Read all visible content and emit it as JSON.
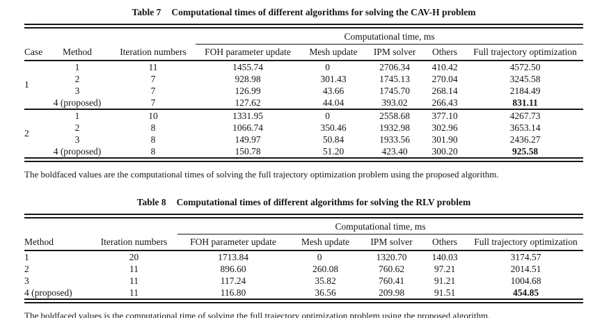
{
  "page": {
    "background": "#ffffff",
    "text_color": "#141414",
    "rule_color": "#151515"
  },
  "table7": {
    "title_label": "Table 7",
    "title": "Computational times of different algorithms for solving the CAV-H problem",
    "span_header": "Computational time, ms",
    "columns": [
      "Case",
      "Method",
      "Iteration numbers",
      "FOH parameter update",
      "Mesh update",
      "IPM solver",
      "Others",
      "Full trajectory optimization"
    ],
    "groups": [
      {
        "case": "1",
        "rows": [
          {
            "method": "1",
            "iterations": "11",
            "times": [
              "1455.74",
              "0",
              "2706.34",
              "410.42",
              "4572.50"
            ],
            "bold_last": false
          },
          {
            "method": "2",
            "iterations": "7",
            "times": [
              "928.98",
              "301.43",
              "1745.13",
              "270.04",
              "3245.58"
            ],
            "bold_last": false
          },
          {
            "method": "3",
            "iterations": "7",
            "times": [
              "126.99",
              "43.66",
              "1745.70",
              "268.14",
              "2184.49"
            ],
            "bold_last": false
          },
          {
            "method": "4 (proposed)",
            "iterations": "7",
            "times": [
              "127.62",
              "44.04",
              "393.02",
              "266.43",
              "831.11"
            ],
            "bold_last": true
          }
        ]
      },
      {
        "case": "2",
        "rows": [
          {
            "method": "1",
            "iterations": "10",
            "times": [
              "1331.95",
              "0",
              "2558.68",
              "377.10",
              "4267.73"
            ],
            "bold_last": false
          },
          {
            "method": "2",
            "iterations": "8",
            "times": [
              "1066.74",
              "350.46",
              "1932.98",
              "302.96",
              "3653.14"
            ],
            "bold_last": false
          },
          {
            "method": "3",
            "iterations": "8",
            "times": [
              "149.97",
              "50.84",
              "1933.56",
              "301.90",
              "2436.27"
            ],
            "bold_last": false
          },
          {
            "method": "4 (proposed)",
            "iterations": "8",
            "times": [
              "150.78",
              "51.20",
              "423.40",
              "300.20",
              "925.58"
            ],
            "bold_last": true
          }
        ]
      }
    ],
    "footnote": "The boldfaced values are the computational times of solving the full trajectory optimization problem using the proposed algorithm."
  },
  "table8": {
    "title_label": "Table 8",
    "title": "Computational times of different algorithms for solving the RLV problem",
    "span_header": "Computational time, ms",
    "columns": [
      "Method",
      "Iteration numbers",
      "FOH parameter update",
      "Mesh update",
      "IPM solver",
      "Others",
      "Full trajectory optimization"
    ],
    "groups": [
      {
        "rows": [
          {
            "method": "1",
            "iterations": "20",
            "times": [
              "1713.84",
              "0",
              "1320.70",
              "140.03",
              "3174.57"
            ],
            "bold_last": false
          },
          {
            "method": "2",
            "iterations": "11",
            "times": [
              "896.60",
              "260.08",
              "760.62",
              "97.21",
              "2014.51"
            ],
            "bold_last": false
          },
          {
            "method": "3",
            "iterations": "11",
            "times": [
              "117.24",
              "35.82",
              "760.41",
              "91.21",
              "1004.68"
            ],
            "bold_last": false
          },
          {
            "method": "4 (proposed)",
            "iterations": "11",
            "times": [
              "116.80",
              "36.56",
              "209.98",
              "91.51",
              "454.85"
            ],
            "bold_last": true
          }
        ]
      }
    ],
    "footnote": "The boldfaced values is the computational time of solving the full trajectory optimization problem using the proposed algorithm."
  }
}
